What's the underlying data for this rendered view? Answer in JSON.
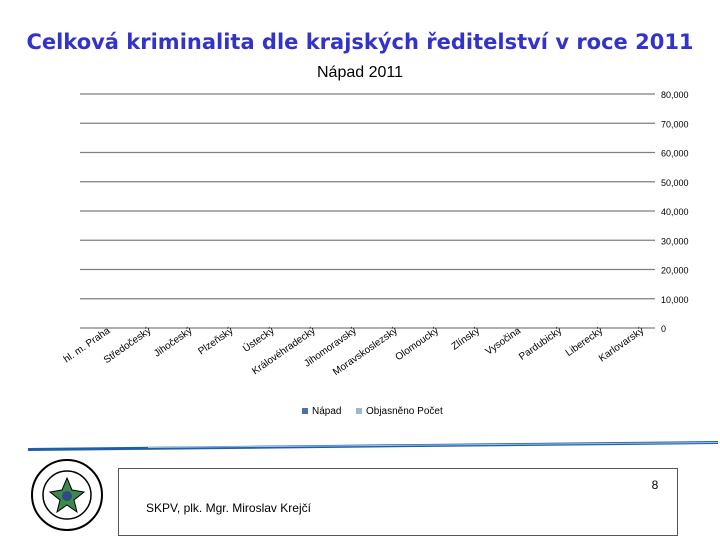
{
  "slide": {
    "title": "Celková kriminalita dle krajských ředitelství v roce 2011",
    "footer_author": "SKPV, plk. Mgr. Miroslav Krejčí",
    "page_number": "8"
  },
  "chart_data": {
    "type": "bar",
    "title": "Nápad 2011",
    "categories": [
      "hl. m. Praha",
      "Středočeský",
      "Jihočeský",
      "Plzeňský",
      "Ústecký",
      "Královéhradecký",
      "Jihomoravský",
      "Moravskoslezský",
      "Olomoucký",
      "Zlínský",
      "Vysočina",
      "Pardubický",
      "Liberecký",
      "Karlovarský"
    ],
    "series": [
      {
        "name": "Nápad",
        "color": "#4f6fa8",
        "values": [
          0,
          0,
          0,
          0,
          0,
          0,
          0,
          0,
          0,
          0,
          0,
          0,
          0,
          0
        ]
      },
      {
        "name": "Objasněno Počet",
        "color": "#9bb7d4",
        "values": [
          0,
          0,
          0,
          0,
          0,
          0,
          0,
          0,
          0,
          0,
          0,
          0,
          0,
          0
        ]
      }
    ],
    "y_ticks": [
      "0",
      "10,000",
      "20,000",
      "30,000",
      "40,000",
      "50,000",
      "60,000",
      "70,000",
      "80,000"
    ],
    "ylim": [
      0,
      80000
    ],
    "grid": true,
    "legend_position": "bottom"
  }
}
